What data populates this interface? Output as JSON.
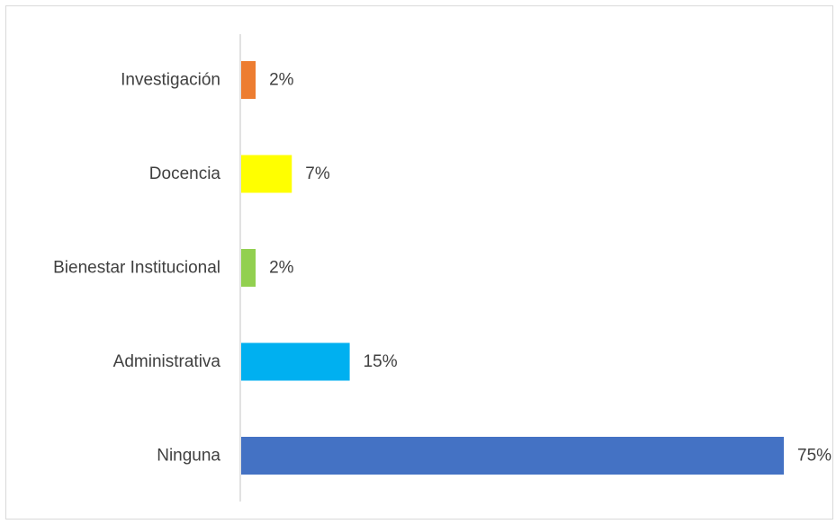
{
  "chart_data": {
    "type": "bar",
    "orientation": "horizontal",
    "categories": [
      "Investigación",
      "Docencia",
      "Bienestar Institucional",
      "Administrativa",
      "Ninguna"
    ],
    "values": [
      2,
      7,
      2,
      15,
      75
    ],
    "value_labels": [
      "2%",
      "7%",
      "2%",
      "15%",
      "75%"
    ],
    "bar_colors": [
      "#ED7D31",
      "#FFFF00",
      "#92D050",
      "#00B0F0",
      "#4472C4"
    ],
    "xlim": [
      0,
      75
    ],
    "grid": false,
    "legend": "none"
  }
}
